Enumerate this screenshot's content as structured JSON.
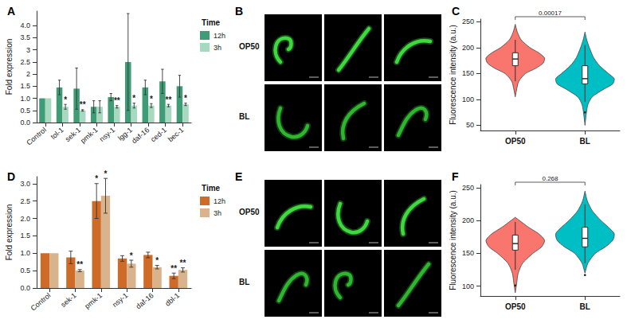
{
  "chart_data": [
    {
      "panel": "A",
      "type": "bar",
      "categories": [
        "Control",
        "tol-1",
        "sek-1",
        "pmk-1",
        "nsy-1",
        "lgg-1",
        "daf-16",
        "ced-1",
        "bec-1"
      ],
      "series": [
        {
          "name": "12h",
          "color": "#3f9c76",
          "values": [
            1,
            1.45,
            1.4,
            0.65,
            1.05,
            2.5,
            1.45,
            1.7,
            1.5
          ],
          "errors": [
            null,
            0.3,
            0.85,
            0.25,
            0.15,
            2.0,
            0.3,
            0.5,
            0.45
          ],
          "significance": [
            null,
            null,
            null,
            null,
            null,
            null,
            null,
            null,
            null
          ]
        },
        {
          "name": "3h",
          "color": "#a6d9bf",
          "values": [
            1,
            0.65,
            0.5,
            0.65,
            0.65,
            0.7,
            0.7,
            0.7,
            0.75
          ],
          "errors": [
            null,
            0.1,
            0.03,
            0.25,
            0.05,
            0.1,
            0.08,
            0.05,
            0.05
          ],
          "significance": [
            null,
            "*",
            "**",
            null,
            "**",
            "*",
            "*",
            "**",
            "*"
          ]
        }
      ],
      "ylabel": "Fold expression",
      "ylim": [
        0,
        4.6
      ],
      "yticks": [
        {
          "value": 0,
          "label": "0.0"
        },
        0.5,
        {
          "value": 1,
          "label": "1.0"
        },
        1.5,
        2,
        2.5,
        3,
        3.5,
        {
          "value": 4,
          "label": "4.0"
        }
      ],
      "legend": "top right",
      "legend_title": "Time",
      "grid": false
    },
    {
      "panel": "B",
      "type": "image",
      "rows": [
        "OP50",
        "BL"
      ],
      "columns": 3
    },
    {
      "panel": "C",
      "type": "violin",
      "categories": [
        "OP50",
        "BL"
      ],
      "groups": [
        {
          "category": "OP50",
          "color": "#f8766d",
          "box": [
            135,
            165,
            178,
            190,
            215
          ],
          "outliers": [],
          "density": {
            "y": [
              105,
              120,
              135,
              150,
              160,
              170,
              180,
              190,
              200,
              215,
              230,
              245
            ],
            "width": [
              0,
              0.05,
              0.12,
              0.35,
              0.7,
              0.95,
              1,
              0.8,
              0.5,
              0.2,
              0.07,
              0
            ]
          }
        },
        {
          "category": "BL",
          "color": "#00bfc4",
          "box": [
            95,
            130,
            140,
            165,
            205
          ],
          "outliers": [
            75
          ],
          "density": {
            "y": [
              50,
              70,
              90,
              105,
              120,
              130,
              140,
              150,
              165,
              180,
              200,
              215,
              230
            ],
            "width": [
              0,
              0.04,
              0.1,
              0.25,
              0.65,
              0.95,
              1,
              0.8,
              0.5,
              0.3,
              0.15,
              0.06,
              0
            ]
          }
        }
      ],
      "annotations": [
        {
          "text": "0.00017",
          "from": "OP50",
          "to": "BL"
        }
      ],
      "ylabel": "Fluorescence intensity (a.u.)",
      "ylim": [
        40,
        255
      ],
      "yticks": [
        50,
        100,
        150,
        200,
        250
      ],
      "grid": false
    },
    {
      "panel": "D",
      "type": "bar",
      "categories": [
        "Control",
        "sek-1",
        "pmk-1",
        "nsy-1",
        "daf-16",
        "dbl-1"
      ],
      "series": [
        {
          "name": "12h",
          "color": "#cf6b28",
          "values": [
            1,
            0.88,
            2.5,
            0.85,
            0.95,
            0.35
          ],
          "errors": [
            null,
            0.18,
            0.5,
            0.08,
            0.08,
            0.08
          ],
          "significance": [
            null,
            null,
            "*",
            null,
            null,
            "**"
          ]
        },
        {
          "name": "3h",
          "color": "#d8b38c",
          "values": [
            1,
            0.5,
            2.65,
            0.7,
            0.6,
            0.52
          ],
          "errors": [
            null,
            0.03,
            0.5,
            0.1,
            0.05,
            0.06
          ],
          "significance": [
            null,
            "**",
            "*",
            "*",
            "*",
            "**"
          ]
        }
      ],
      "ylabel": "Fold expression",
      "ylim": [
        0,
        3.2
      ],
      "yticks": [
        {
          "value": 0,
          "label": "0.0"
        },
        0.5,
        {
          "value": 1,
          "label": "1.0"
        },
        1.5,
        {
          "value": 2,
          "label": "2.0"
        },
        2.5,
        {
          "value": 3,
          "label": "3.0"
        }
      ],
      "legend": "top right",
      "legend_title": "Time",
      "grid": false
    },
    {
      "panel": "E",
      "type": "image",
      "rows": [
        "OP50",
        "BL"
      ],
      "columns": 3
    },
    {
      "panel": "F",
      "type": "violin",
      "categories": [
        "OP50",
        "BL"
      ],
      "groups": [
        {
          "category": "OP50",
          "color": "#f8766d",
          "box": [
            125,
            155,
            165,
            178,
            198
          ],
          "outliers": [
            101
          ],
          "density": {
            "y": [
              90,
              105,
              120,
              135,
              150,
              160,
              170,
              180,
              190,
              200,
              205
            ],
            "width": [
              0,
              0.05,
              0.1,
              0.25,
              0.6,
              0.9,
              1,
              0.8,
              0.45,
              0.15,
              0
            ]
          }
        },
        {
          "category": "BL",
          "color": "#00bfc4",
          "box": [
            135,
            160,
            173,
            190,
            225
          ],
          "outliers": [
            117
          ],
          "density": {
            "y": [
              120,
              135,
              150,
              160,
              170,
              180,
              190,
              200,
              215,
              230,
              245
            ],
            "width": [
              0,
              0.1,
              0.35,
              0.7,
              0.95,
              1,
              0.8,
              0.55,
              0.25,
              0.08,
              0
            ]
          }
        }
      ],
      "annotations": [
        {
          "text": "0.268",
          "from": "OP50",
          "to": "BL"
        }
      ],
      "ylabel": "Fluorescence intensity (a.u.)",
      "ylim": [
        85,
        255
      ],
      "yticks": [
        100,
        150,
        200,
        250
      ],
      "grid": false
    }
  ]
}
